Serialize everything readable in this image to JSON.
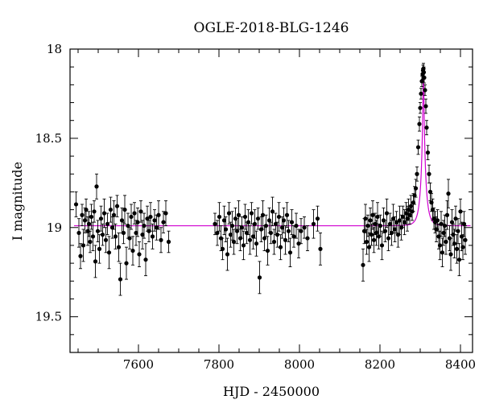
{
  "chart_data": {
    "type": "scatter",
    "title": "OGLE-2018-BLG-1246",
    "xlabel": "HJD - 2450000",
    "ylabel": "I magnitude",
    "xlim": [
      7430,
      8430
    ],
    "ylim": [
      18.0,
      19.7
    ],
    "y_inverted": true,
    "x_ticks": [
      7600,
      7800,
      8000,
      8200,
      8400
    ],
    "x_tick_labels": [
      "7600",
      "7800",
      "8000",
      "8200",
      "8400"
    ],
    "y_ticks": [
      18.0,
      18.5,
      19.0,
      19.5
    ],
    "y_tick_labels": [
      "18",
      "18.5",
      "19",
      "19.5"
    ],
    "colors": {
      "model": "#d000d0",
      "points": "#000000"
    },
    "model": {
      "type": "pspl",
      "baseline": 18.99,
      "peak_mag": 18.12,
      "t0": 8308,
      "tE": 12
    },
    "series": [
      {
        "points": [
          [
            7445,
            18.87,
            0.07
          ],
          [
            7452,
            19.03,
            0.08
          ],
          [
            7456,
            19.16,
            0.07
          ],
          [
            7460,
            18.93,
            0.06
          ],
          [
            7463,
            19.1,
            0.09
          ],
          [
            7467,
            18.96,
            0.07
          ],
          [
            7470,
            18.9,
            0.06
          ],
          [
            7474,
            19.02,
            0.08
          ],
          [
            7477,
            18.98,
            0.07
          ],
          [
            7480,
            19.08,
            0.06
          ],
          [
            7483,
            18.94,
            0.07
          ],
          [
            7487,
            19.05,
            0.08
          ],
          [
            7490,
            18.91,
            0.06
          ],
          [
            7493,
            19.19,
            0.09
          ],
          [
            7496,
            18.77,
            0.07
          ],
          [
            7499,
            19.02,
            0.06
          ],
          [
            7503,
            19.12,
            0.08
          ],
          [
            7507,
            18.95,
            0.07
          ],
          [
            7511,
            19.04,
            0.06
          ],
          [
            7515,
            18.92,
            0.08
          ],
          [
            7519,
            19.07,
            0.07
          ],
          [
            7523,
            18.98,
            0.06
          ],
          [
            7527,
            19.14,
            0.09
          ],
          [
            7531,
            18.9,
            0.07
          ],
          [
            7535,
            19.0,
            0.06
          ],
          [
            7539,
            18.93,
            0.08
          ],
          [
            7543,
            19.05,
            0.07
          ],
          [
            7547,
            18.88,
            0.06
          ],
          [
            7551,
            19.11,
            0.08
          ],
          [
            7555,
            19.29,
            0.09
          ],
          [
            7559,
            18.96,
            0.07
          ],
          [
            7563,
            19.03,
            0.06
          ],
          [
            7566,
            18.9,
            0.08
          ],
          [
            7570,
            19.2,
            0.09
          ],
          [
            7574,
            18.99,
            0.07
          ],
          [
            7578,
            19.06,
            0.06
          ],
          [
            7582,
            18.94,
            0.07
          ],
          [
            7586,
            19.13,
            0.08
          ],
          [
            7590,
            18.92,
            0.06
          ],
          [
            7594,
            19.03,
            0.07
          ],
          [
            7598,
            18.97,
            0.08
          ],
          [
            7602,
            19.15,
            0.07
          ],
          [
            7606,
            18.91,
            0.06
          ],
          [
            7610,
            19.04,
            0.08
          ],
          [
            7614,
            18.99,
            0.07
          ],
          [
            7618,
            19.18,
            0.09
          ],
          [
            7622,
            18.95,
            0.07
          ],
          [
            7626,
            19.02,
            0.06
          ],
          [
            7630,
            18.94,
            0.08
          ],
          [
            7635,
            19.05,
            0.07
          ],
          [
            7640,
            18.96,
            0.06
          ],
          [
            7645,
            19.0,
            0.07
          ],
          [
            7650,
            18.93,
            0.08
          ],
          [
            7656,
            19.07,
            0.07
          ],
          [
            7662,
            18.97,
            0.06
          ],
          [
            7668,
            18.92,
            0.07
          ],
          [
            7675,
            19.08,
            0.06
          ],
          [
            7790,
            18.98,
            0.06
          ],
          [
            7796,
            19.03,
            0.07
          ],
          [
            7801,
            18.94,
            0.08
          ],
          [
            7805,
            19.06,
            0.07
          ],
          [
            7809,
            19.12,
            0.06
          ],
          [
            7813,
            18.96,
            0.08
          ],
          [
            7817,
            19.01,
            0.07
          ],
          [
            7821,
            19.15,
            0.09
          ],
          [
            7825,
            18.92,
            0.06
          ],
          [
            7829,
            19.04,
            0.07
          ],
          [
            7833,
            18.99,
            0.08
          ],
          [
            7837,
            19.08,
            0.07
          ],
          [
            7841,
            18.95,
            0.06
          ],
          [
            7845,
            19.02,
            0.07
          ],
          [
            7849,
            18.93,
            0.08
          ],
          [
            7853,
            19.06,
            0.07
          ],
          [
            7857,
            19.0,
            0.06
          ],
          [
            7861,
            19.1,
            0.08
          ],
          [
            7865,
            18.94,
            0.07
          ],
          [
            7869,
            19.03,
            0.06
          ],
          [
            7873,
            18.97,
            0.07
          ],
          [
            7877,
            19.07,
            0.08
          ],
          [
            7881,
            18.92,
            0.06
          ],
          [
            7885,
            19.05,
            0.07
          ],
          [
            7889,
            18.98,
            0.08
          ],
          [
            7893,
            19.09,
            0.07
          ],
          [
            7897,
            18.95,
            0.06
          ],
          [
            7901,
            19.28,
            0.09
          ],
          [
            7905,
            19.01,
            0.07
          ],
          [
            7909,
            18.93,
            0.08
          ],
          [
            7913,
            19.06,
            0.07
          ],
          [
            7917,
            18.99,
            0.06
          ],
          [
            7921,
            19.13,
            0.08
          ],
          [
            7925,
            18.96,
            0.07
          ],
          [
            7929,
            19.03,
            0.06
          ],
          [
            7933,
            18.91,
            0.08
          ],
          [
            7937,
            19.08,
            0.07
          ],
          [
            7941,
            18.98,
            0.06
          ],
          [
            7945,
            19.04,
            0.07
          ],
          [
            7949,
            18.94,
            0.08
          ],
          [
            7953,
            19.11,
            0.07
          ],
          [
            7957,
            19.0,
            0.06
          ],
          [
            7961,
            18.96,
            0.07
          ],
          [
            7965,
            19.07,
            0.08
          ],
          [
            7969,
            18.93,
            0.07
          ],
          [
            7973,
            19.02,
            0.06
          ],
          [
            7977,
            19.14,
            0.08
          ],
          [
            7981,
            18.97,
            0.07
          ],
          [
            7986,
            19.05,
            0.06
          ],
          [
            7992,
            18.99,
            0.07
          ],
          [
            7998,
            19.09,
            0.08
          ],
          [
            8004,
            19.02,
            0.07
          ],
          [
            8012,
            19.0,
            0.06
          ],
          [
            8020,
            19.06,
            0.07
          ],
          [
            8035,
            18.98,
            0.08
          ],
          [
            8045,
            18.95,
            0.07
          ],
          [
            8052,
            19.12,
            0.09
          ],
          [
            8158,
            19.21,
            0.09
          ],
          [
            8161,
            19.02,
            0.07
          ],
          [
            8164,
            18.95,
            0.08
          ],
          [
            8167,
            19.08,
            0.07
          ],
          [
            8170,
            18.99,
            0.06
          ],
          [
            8173,
            19.11,
            0.08
          ],
          [
            8176,
            18.96,
            0.07
          ],
          [
            8179,
            19.04,
            0.06
          ],
          [
            8182,
            18.93,
            0.08
          ],
          [
            8185,
            19.07,
            0.07
          ],
          [
            8188,
            18.98,
            0.06
          ],
          [
            8191,
            19.03,
            0.07
          ],
          [
            8194,
            18.94,
            0.08
          ],
          [
            8197,
            19.05,
            0.07
          ],
          [
            8201,
            18.99,
            0.06
          ],
          [
            8205,
            19.1,
            0.08
          ],
          [
            8209,
            18.96,
            0.07
          ],
          [
            8213,
            19.02,
            0.06
          ],
          [
            8217,
            18.92,
            0.08
          ],
          [
            8221,
            19.06,
            0.07
          ],
          [
            8225,
            18.98,
            0.06
          ],
          [
            8229,
            19.03,
            0.07
          ],
          [
            8233,
            18.95,
            0.08
          ],
          [
            8237,
            19.01,
            0.07
          ],
          [
            8241,
            18.97,
            0.06
          ],
          [
            8245,
            19.04,
            0.07
          ],
          [
            8249,
            18.96,
            0.08
          ],
          [
            8253,
            19.0,
            0.07
          ],
          [
            8257,
            18.94,
            0.06
          ],
          [
            8261,
            18.97,
            0.07
          ],
          [
            8265,
            18.92,
            0.06
          ],
          [
            8268,
            18.95,
            0.07
          ],
          [
            8271,
            18.9,
            0.06
          ],
          [
            8274,
            18.93,
            0.05
          ],
          [
            8277,
            18.88,
            0.06
          ],
          [
            8280,
            18.91,
            0.05
          ],
          [
            8283,
            18.86,
            0.05
          ],
          [
            8286,
            18.82,
            0.05
          ],
          [
            8289,
            18.78,
            0.05
          ],
          [
            8292,
            18.7,
            0.04
          ],
          [
            8295,
            18.55,
            0.04
          ],
          [
            8298,
            18.42,
            0.04
          ],
          [
            8300,
            18.33,
            0.03
          ],
          [
            8302,
            18.25,
            0.03
          ],
          [
            8304,
            18.18,
            0.03
          ],
          [
            8306,
            18.14,
            0.03
          ],
          [
            8307,
            18.12,
            0.03
          ],
          [
            8308,
            18.11,
            0.03
          ],
          [
            8309,
            18.13,
            0.03
          ],
          [
            8310,
            18.16,
            0.03
          ],
          [
            8312,
            18.23,
            0.03
          ],
          [
            8314,
            18.32,
            0.04
          ],
          [
            8316,
            18.44,
            0.04
          ],
          [
            8319,
            18.58,
            0.04
          ],
          [
            8322,
            18.7,
            0.05
          ],
          [
            8325,
            18.8,
            0.05
          ],
          [
            8328,
            18.86,
            0.05
          ],
          [
            8331,
            18.9,
            0.06
          ],
          [
            8334,
            18.95,
            0.06
          ],
          [
            8337,
            18.97,
            0.06
          ],
          [
            8340,
            19.01,
            0.07
          ],
          [
            8343,
            18.96,
            0.06
          ],
          [
            8346,
            19.05,
            0.07
          ],
          [
            8349,
            19.1,
            0.08
          ],
          [
            8352,
            18.98,
            0.07
          ],
          [
            8355,
            19.14,
            0.08
          ],
          [
            8358,
            19.03,
            0.07
          ],
          [
            8361,
            18.99,
            0.06
          ],
          [
            8364,
            19.08,
            0.07
          ],
          [
            8367,
            18.93,
            0.08
          ],
          [
            8370,
            18.81,
            0.08
          ],
          [
            8373,
            19.06,
            0.07
          ],
          [
            8376,
            19.15,
            0.09
          ],
          [
            8379,
            18.97,
            0.07
          ],
          [
            8382,
            19.04,
            0.06
          ],
          [
            8385,
            19.09,
            0.08
          ],
          [
            8388,
            18.95,
            0.07
          ],
          [
            8391,
            19.12,
            0.08
          ],
          [
            8394,
            19.02,
            0.07
          ],
          [
            8397,
            19.18,
            0.09
          ],
          [
            8400,
            18.91,
            0.07
          ],
          [
            8403,
            19.05,
            0.08
          ],
          [
            8406,
            19.11,
            0.07
          ],
          [
            8409,
            18.98,
            0.07
          ],
          [
            8412,
            19.07,
            0.08
          ]
        ]
      }
    ]
  }
}
